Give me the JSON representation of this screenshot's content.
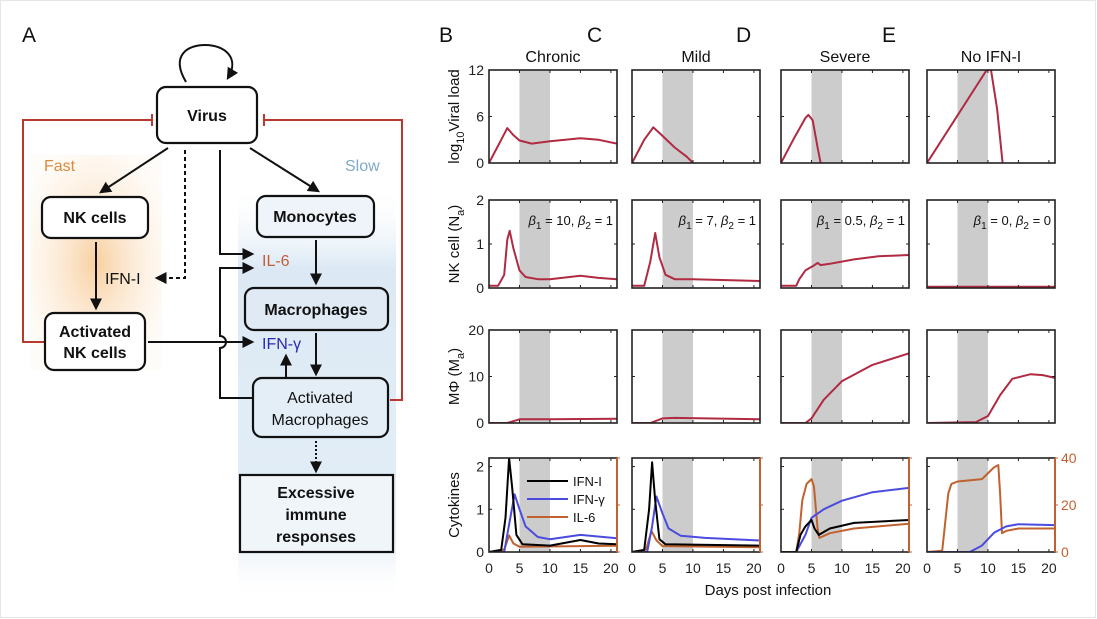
{
  "panel_labels": {
    "A": "A",
    "B": "B",
    "C": "C",
    "D": "D",
    "E": "E"
  },
  "diagram": {
    "nodes": {
      "virus": "Virus",
      "nk_cells": "NK cells",
      "activated_nk": [
        "Activated",
        "NK cells"
      ],
      "monocytes": "Monocytes",
      "macrophages": "Macrophages",
      "activated_macrophages": [
        "Activated",
        "Macrophages"
      ],
      "excessive": [
        "Excessive",
        "immune",
        "responses"
      ]
    },
    "labels": {
      "fast": "Fast",
      "slow": "Slow",
      "ifn_i": "IFN-I",
      "il6": "IL-6",
      "ifn_gamma": "IFN-γ"
    },
    "colors": {
      "fast": "#d98a3e",
      "slow": "#7fa9c8",
      "il6": "#c0603a",
      "ifn_gamma": "#2a2ab0",
      "inhibition": "#b83a2e"
    }
  },
  "chart_data": {
    "type": "line",
    "xlabel": "Days post infection",
    "xlim": [
      0,
      21
    ],
    "xticks": [
      0,
      5,
      10,
      15,
      20
    ],
    "shaded_interval": [
      5,
      10
    ],
    "colors": {
      "state": "#b02a42",
      "IFN-I": "#000000",
      "IFN-γ": "#4b4be0",
      "IL-6": "#c0622f",
      "shade": "#cccccc"
    },
    "beta_symbol": "β",
    "rows": [
      {
        "key": "viral",
        "ylabel": [
          "log",
          "10",
          "Viral load"
        ],
        "ylim": [
          0,
          12
        ],
        "yticks": [
          0,
          6,
          12
        ]
      },
      {
        "key": "nk",
        "ylabel": [
          "NK cell (N",
          "a",
          ")"
        ],
        "ylim": [
          0,
          2
        ],
        "yticks": [
          0,
          1,
          2
        ]
      },
      {
        "key": "mac",
        "ylabel": [
          "MΦ (M",
          "a",
          ")"
        ],
        "ylim": [
          0,
          20
        ],
        "yticks": [
          0,
          10,
          20
        ]
      },
      {
        "key": "cyt",
        "ylabel": [
          "Cytokines",
          "",
          ""
        ],
        "ylim": [
          0,
          2.2
        ],
        "yticks": [
          0,
          1,
          2
        ],
        "ylim_right": [
          0,
          40
        ],
        "yticks_right": [
          0,
          20,
          40
        ]
      }
    ],
    "legend": [
      "IFN-I",
      "IFN-γ",
      "IL-6"
    ],
    "columns": [
      {
        "title": "Chronic",
        "beta1": "10",
        "beta2": "1",
        "viral": [
          [
            0,
            0
          ],
          [
            1,
            1.5
          ],
          [
            2,
            3
          ],
          [
            3,
            4.5
          ],
          [
            4,
            3.6
          ],
          [
            5,
            2.9
          ],
          [
            7,
            2.5
          ],
          [
            10,
            2.8
          ],
          [
            15,
            3.2
          ],
          [
            18,
            3
          ],
          [
            21,
            2.5
          ]
        ],
        "nk": [
          [
            0,
            0.05
          ],
          [
            1.5,
            0.05
          ],
          [
            2.5,
            0.3
          ],
          [
            3,
            1.1
          ],
          [
            3.4,
            1.3
          ],
          [
            4,
            0.9
          ],
          [
            5,
            0.4
          ],
          [
            6,
            0.25
          ],
          [
            8,
            0.2
          ],
          [
            10,
            0.2
          ],
          [
            15,
            0.28
          ],
          [
            18,
            0.23
          ],
          [
            21,
            0.2
          ]
        ],
        "mac": [
          [
            0,
            0
          ],
          [
            3,
            0
          ],
          [
            5,
            0.8
          ],
          [
            10,
            0.8
          ],
          [
            21,
            0.9
          ]
        ],
        "cyt": {
          "IFN-I": [
            [
              0,
              0
            ],
            [
              2,
              0.05
            ],
            [
              2.7,
              0.8
            ],
            [
              3.3,
              2.2
            ],
            [
              3.8,
              1.5
            ],
            [
              4.5,
              0.4
            ],
            [
              5.5,
              0.18
            ],
            [
              10,
              0.15
            ],
            [
              15,
              0.28
            ],
            [
              18,
              0.2
            ],
            [
              21,
              0.18
            ]
          ],
          "IFN-γ": [
            [
              0,
              0
            ],
            [
              2.5,
              0
            ],
            [
              3.5,
              0.8
            ],
            [
              4.2,
              1.35
            ],
            [
              5,
              1
            ],
            [
              6,
              0.6
            ],
            [
              8,
              0.35
            ],
            [
              10,
              0.3
            ],
            [
              15,
              0.4
            ],
            [
              21,
              0.32
            ]
          ],
          "IL-6": [
            [
              0,
              0
            ],
            [
              2.5,
              1
            ],
            [
              3.3,
              7
            ],
            [
              4,
              3.6
            ],
            [
              5,
              2.2
            ],
            [
              21,
              2.7
            ]
          ]
        }
      },
      {
        "title": "Mild",
        "beta1": "7",
        "beta2": "1",
        "viral": [
          [
            0,
            0
          ],
          [
            2,
            3
          ],
          [
            3.5,
            4.6
          ],
          [
            5,
            3.5
          ],
          [
            7,
            2
          ],
          [
            9,
            0.8
          ],
          [
            10,
            0
          ]
        ],
        "nk": [
          [
            0,
            0.05
          ],
          [
            2,
            0.05
          ],
          [
            3,
            0.6
          ],
          [
            3.8,
            1.25
          ],
          [
            4.5,
            0.7
          ],
          [
            5.5,
            0.3
          ],
          [
            7,
            0.2
          ],
          [
            10,
            0.2
          ],
          [
            21,
            0.16
          ]
        ],
        "mac": [
          [
            0,
            0
          ],
          [
            3,
            0
          ],
          [
            5,
            1.0
          ],
          [
            7,
            1.1
          ],
          [
            21,
            0.8
          ]
        ],
        "cyt": {
          "IFN-I": [
            [
              0,
              0
            ],
            [
              2,
              0.05
            ],
            [
              2.8,
              1
            ],
            [
              3.3,
              2.1
            ],
            [
              3.8,
              1.2
            ],
            [
              4.5,
              0.3
            ],
            [
              5.5,
              0.18
            ],
            [
              21,
              0.15
            ]
          ],
          "IFN-γ": [
            [
              0,
              0
            ],
            [
              2.5,
              0
            ],
            [
              3.3,
              0.6
            ],
            [
              4,
              1.3
            ],
            [
              5,
              0.9
            ],
            [
              6,
              0.55
            ],
            [
              8,
              0.38
            ],
            [
              12,
              0.33
            ],
            [
              21,
              0.27
            ]
          ],
          "IL-6": [
            [
              0,
              0
            ],
            [
              2.3,
              1
            ],
            [
              3.2,
              9
            ],
            [
              4,
              5
            ],
            [
              5,
              2.5
            ],
            [
              21,
              2
            ]
          ]
        }
      },
      {
        "title": "Severe",
        "beta1": "0.5",
        "beta2": "1",
        "viral": [
          [
            0,
            0
          ],
          [
            2,
            3
          ],
          [
            4,
            5.8
          ],
          [
            4.5,
            6.2
          ],
          [
            5.2,
            5.5
          ],
          [
            6,
            2
          ],
          [
            6.5,
            0
          ]
        ],
        "nk": [
          [
            0,
            0.05
          ],
          [
            2.5,
            0.05
          ],
          [
            3,
            0.2
          ],
          [
            4,
            0.4
          ],
          [
            5.5,
            0.52
          ],
          [
            6,
            0.57
          ],
          [
            6.5,
            0.52
          ],
          [
            8,
            0.55
          ],
          [
            12,
            0.65
          ],
          [
            16,
            0.72
          ],
          [
            21,
            0.75
          ]
        ],
        "mac": [
          [
            0,
            0
          ],
          [
            4,
            0
          ],
          [
            5,
            1
          ],
          [
            7,
            5
          ],
          [
            10,
            9
          ],
          [
            15,
            12.5
          ],
          [
            21,
            15
          ]
        ],
        "cyt": {
          "IFN-I": [
            [
              0,
              0
            ],
            [
              2.5,
              0
            ],
            [
              3.2,
              0.4
            ],
            [
              4,
              0.6
            ],
            [
              5,
              0.75
            ],
            [
              5.5,
              0.55
            ],
            [
              6.2,
              0.4
            ],
            [
              8,
              0.55
            ],
            [
              12,
              0.68
            ],
            [
              21,
              0.75
            ]
          ],
          "IFN-γ": [
            [
              0,
              0
            ],
            [
              2.5,
              0
            ],
            [
              4,
              0.4
            ],
            [
              5,
              0.8
            ],
            [
              7,
              1.0
            ],
            [
              10,
              1.2
            ],
            [
              15,
              1.4
            ],
            [
              21,
              1.5
            ]
          ],
          "IL-6": [
            [
              0,
              0
            ],
            [
              2.5,
              0
            ],
            [
              3,
              8
            ],
            [
              3.5,
              22
            ],
            [
              4.2,
              29
            ],
            [
              5,
              31
            ],
            [
              5.4,
              28
            ],
            [
              6,
              10
            ],
            [
              6.3,
              6
            ],
            [
              8,
              8
            ],
            [
              12,
              10
            ],
            [
              21,
              12
            ]
          ]
        }
      },
      {
        "title": "No IFN-I",
        "beta1": "0",
        "beta2": "0",
        "viral": [
          [
            0,
            0
          ],
          [
            9.8,
            12
          ],
          [
            10.5,
            12
          ],
          [
            11.5,
            7
          ],
          [
            12.4,
            0
          ]
        ],
        "nk": [
          [
            0,
            0.03
          ],
          [
            21,
            0.03
          ]
        ],
        "mac": [
          [
            0,
            0
          ],
          [
            8,
            0.2
          ],
          [
            10,
            1.5
          ],
          [
            12,
            6
          ],
          [
            14,
            9.5
          ],
          [
            17,
            10.5
          ],
          [
            19,
            10.3
          ],
          [
            21,
            9.7
          ]
        ],
        "cyt": {
          "IFN-γ": [
            [
              0,
              0
            ],
            [
              7,
              0
            ],
            [
              9,
              0.15
            ],
            [
              11,
              0.45
            ],
            [
              13,
              0.6
            ],
            [
              15,
              0.65
            ],
            [
              21,
              0.63
            ]
          ],
          "IL-6": [
            [
              0,
              0
            ],
            [
              2.5,
              0.5
            ],
            [
              3.5,
              25
            ],
            [
              4,
              29
            ],
            [
              5,
              30
            ],
            [
              9,
              31
            ],
            [
              11,
              36
            ],
            [
              11.7,
              37
            ],
            [
              12,
              25
            ],
            [
              12.3,
              8
            ],
            [
              13,
              9
            ],
            [
              15,
              10
            ],
            [
              21,
              10
            ]
          ]
        }
      }
    ]
  }
}
